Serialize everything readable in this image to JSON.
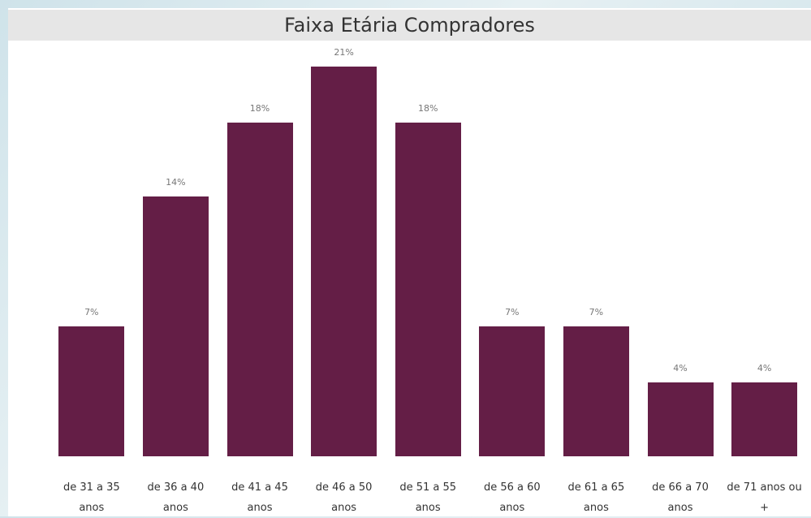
{
  "chart_data": {
    "type": "bar",
    "title": "Faixa Etária Compradores",
    "categories": [
      "de 31 a 35 anos",
      "de 36 a 40 anos",
      "de 41 a 45 anos",
      "de 46 a 50 anos",
      "de 51 a 55 anos",
      "de 56 a 60 anos",
      "de 61 a 65 anos",
      "de 66 a 70 anos",
      "de 71 anos ou +"
    ],
    "values": [
      7,
      14,
      18,
      21,
      18,
      7,
      7,
      4,
      4
    ],
    "value_labels": [
      "7%",
      "14%",
      "18%",
      "21%",
      "18%",
      "7%",
      "7%",
      "4%",
      "4%"
    ],
    "color": "#641e46"
  }
}
